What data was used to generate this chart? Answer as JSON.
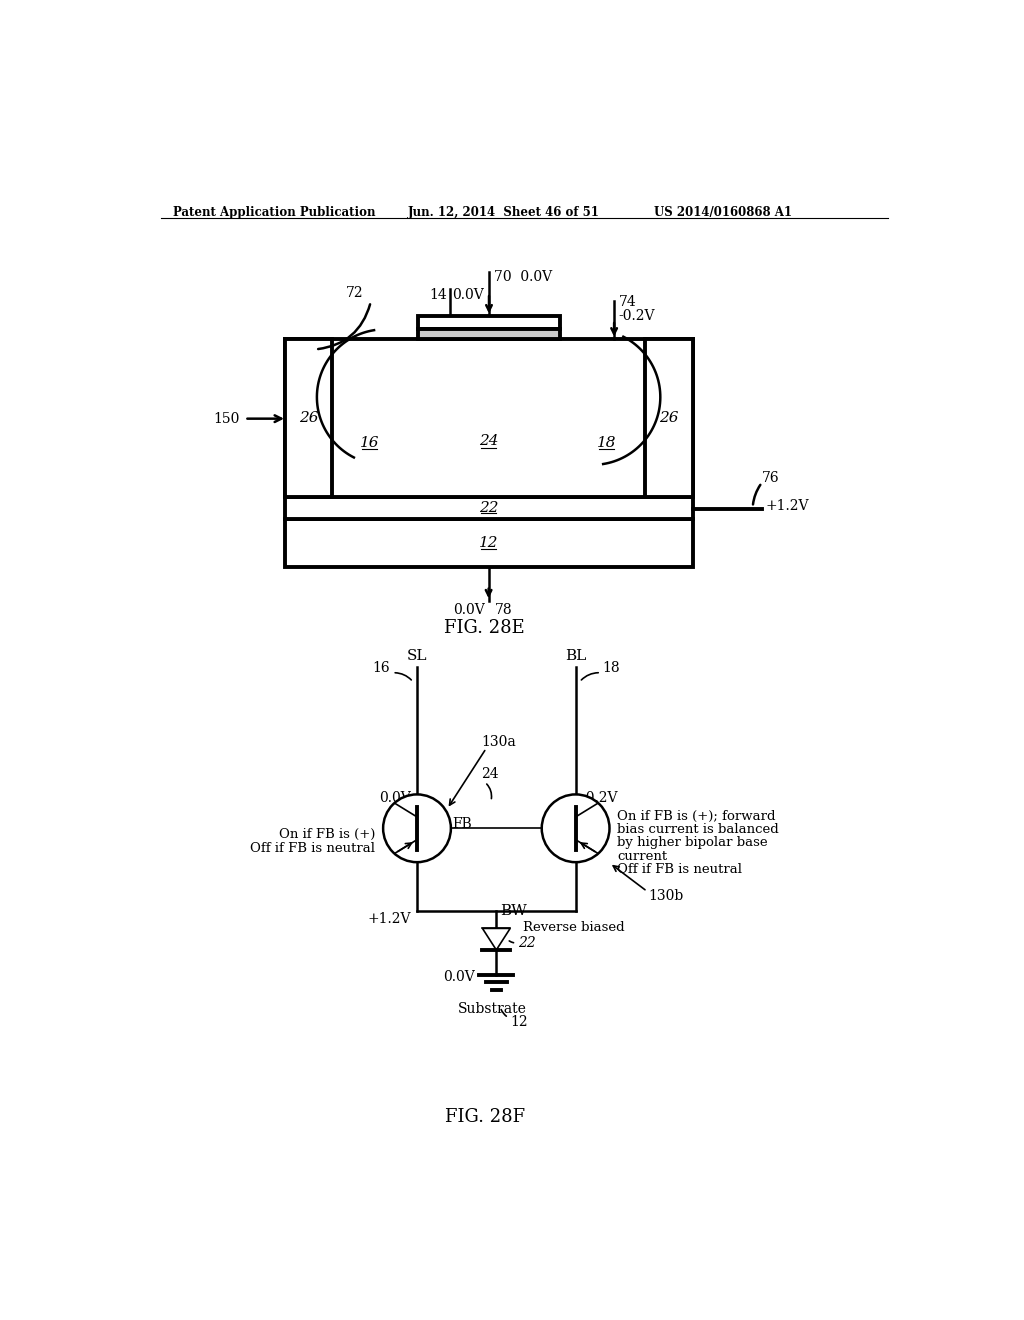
{
  "header_left": "Patent Application Publication",
  "header_mid": "Jun. 12, 2014  Sheet 46 of 51",
  "header_right": "US 2014/0160868 A1",
  "fig_label_top": "FIG. 28E",
  "fig_label_bot": "FIG. 28F",
  "bg_color": "#ffffff",
  "line_color": "#000000",
  "text_color": "#000000",
  "lw_thick": 2.8,
  "lw_med": 1.8,
  "lw_thin": 1.2
}
